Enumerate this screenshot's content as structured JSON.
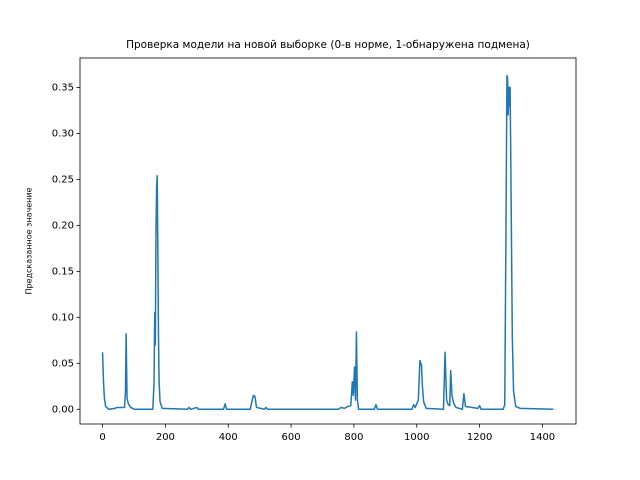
{
  "chart_data": {
    "type": "line",
    "title": "Проверка модели на новой выборке (0-в норме, 1-обнаружена подмена)",
    "ylabel": "Предсказанное значение",
    "series": [
      {
        "color": "#1f77b4",
        "x": [
          0,
          3,
          6,
          10,
          20,
          40,
          45,
          55,
          70,
          73,
          75,
          78,
          82,
          90,
          100,
          160,
          164,
          166,
          168,
          170,
          172,
          174,
          176,
          178,
          180,
          183,
          190,
          270,
          275,
          280,
          300,
          305,
          385,
          390,
          395,
          470,
          475,
          480,
          485,
          490,
          515,
          520,
          525,
          750,
          760,
          770,
          780,
          790,
          795,
          798,
          802,
          805,
          808,
          811,
          815,
          865,
          870,
          875,
          985,
          990,
          995,
          1005,
          1010,
          1013,
          1015,
          1018,
          1022,
          1030,
          1085,
          1090,
          1095,
          1100,
          1105,
          1108,
          1112,
          1118,
          1125,
          1145,
          1150,
          1155,
          1195,
          1200,
          1205,
          1275,
          1280,
          1284,
          1287,
          1289,
          1291,
          1293,
          1295,
          1297,
          1299,
          1301,
          1304,
          1308,
          1315,
          1330,
          1435
        ],
        "values": [
          0.062,
          0.03,
          0.012,
          0.003,
          0.0,
          0.001,
          0.002,
          0.002,
          0.002,
          0.02,
          0.082,
          0.012,
          0.006,
          0.002,
          0.0,
          0.0,
          0.03,
          0.105,
          0.07,
          0.19,
          0.24,
          0.254,
          0.17,
          0.08,
          0.03,
          0.008,
          0.001,
          0.0,
          0.002,
          0.0,
          0.002,
          0.0,
          0.0,
          0.006,
          0.0,
          0.0,
          0.008,
          0.015,
          0.014,
          0.002,
          0.0,
          0.002,
          0.0,
          0.0,
          0.002,
          0.001,
          0.003,
          0.004,
          0.03,
          0.015,
          0.046,
          0.01,
          0.084,
          0.01,
          0.0,
          0.0,
          0.005,
          0.0,
          0.0,
          0.005,
          0.002,
          0.01,
          0.053,
          0.05,
          0.048,
          0.025,
          0.008,
          0.001,
          0.0,
          0.062,
          0.01,
          0.005,
          0.004,
          0.042,
          0.015,
          0.006,
          0.002,
          0.0,
          0.017,
          0.003,
          0.001,
          0.004,
          0.0,
          0.0,
          0.005,
          0.2,
          0.363,
          0.36,
          0.32,
          0.35,
          0.33,
          0.35,
          0.28,
          0.2,
          0.08,
          0.02,
          0.003,
          0.001,
          0.0
        ]
      }
    ],
    "xlim": [
      -71.75,
      1506.75
    ],
    "xticks": [
      0,
      200,
      400,
      600,
      800,
      1000,
      1200,
      1400
    ],
    "ylim": [
      -0.016,
      0.382
    ],
    "yticks": [
      {
        "value": 0,
        "label": "0.00"
      },
      {
        "value": 0.05,
        "label": "0.05"
      },
      {
        "value": 0.1,
        "label": "0.10"
      },
      {
        "value": 0.15,
        "label": "0.15"
      },
      {
        "value": 0.2,
        "label": "0.20"
      },
      {
        "value": 0.25,
        "label": "0.25"
      },
      {
        "value": 0.3,
        "label": "0.30"
      },
      {
        "value": 0.35,
        "label": "0.35"
      }
    ],
    "grid": false
  }
}
